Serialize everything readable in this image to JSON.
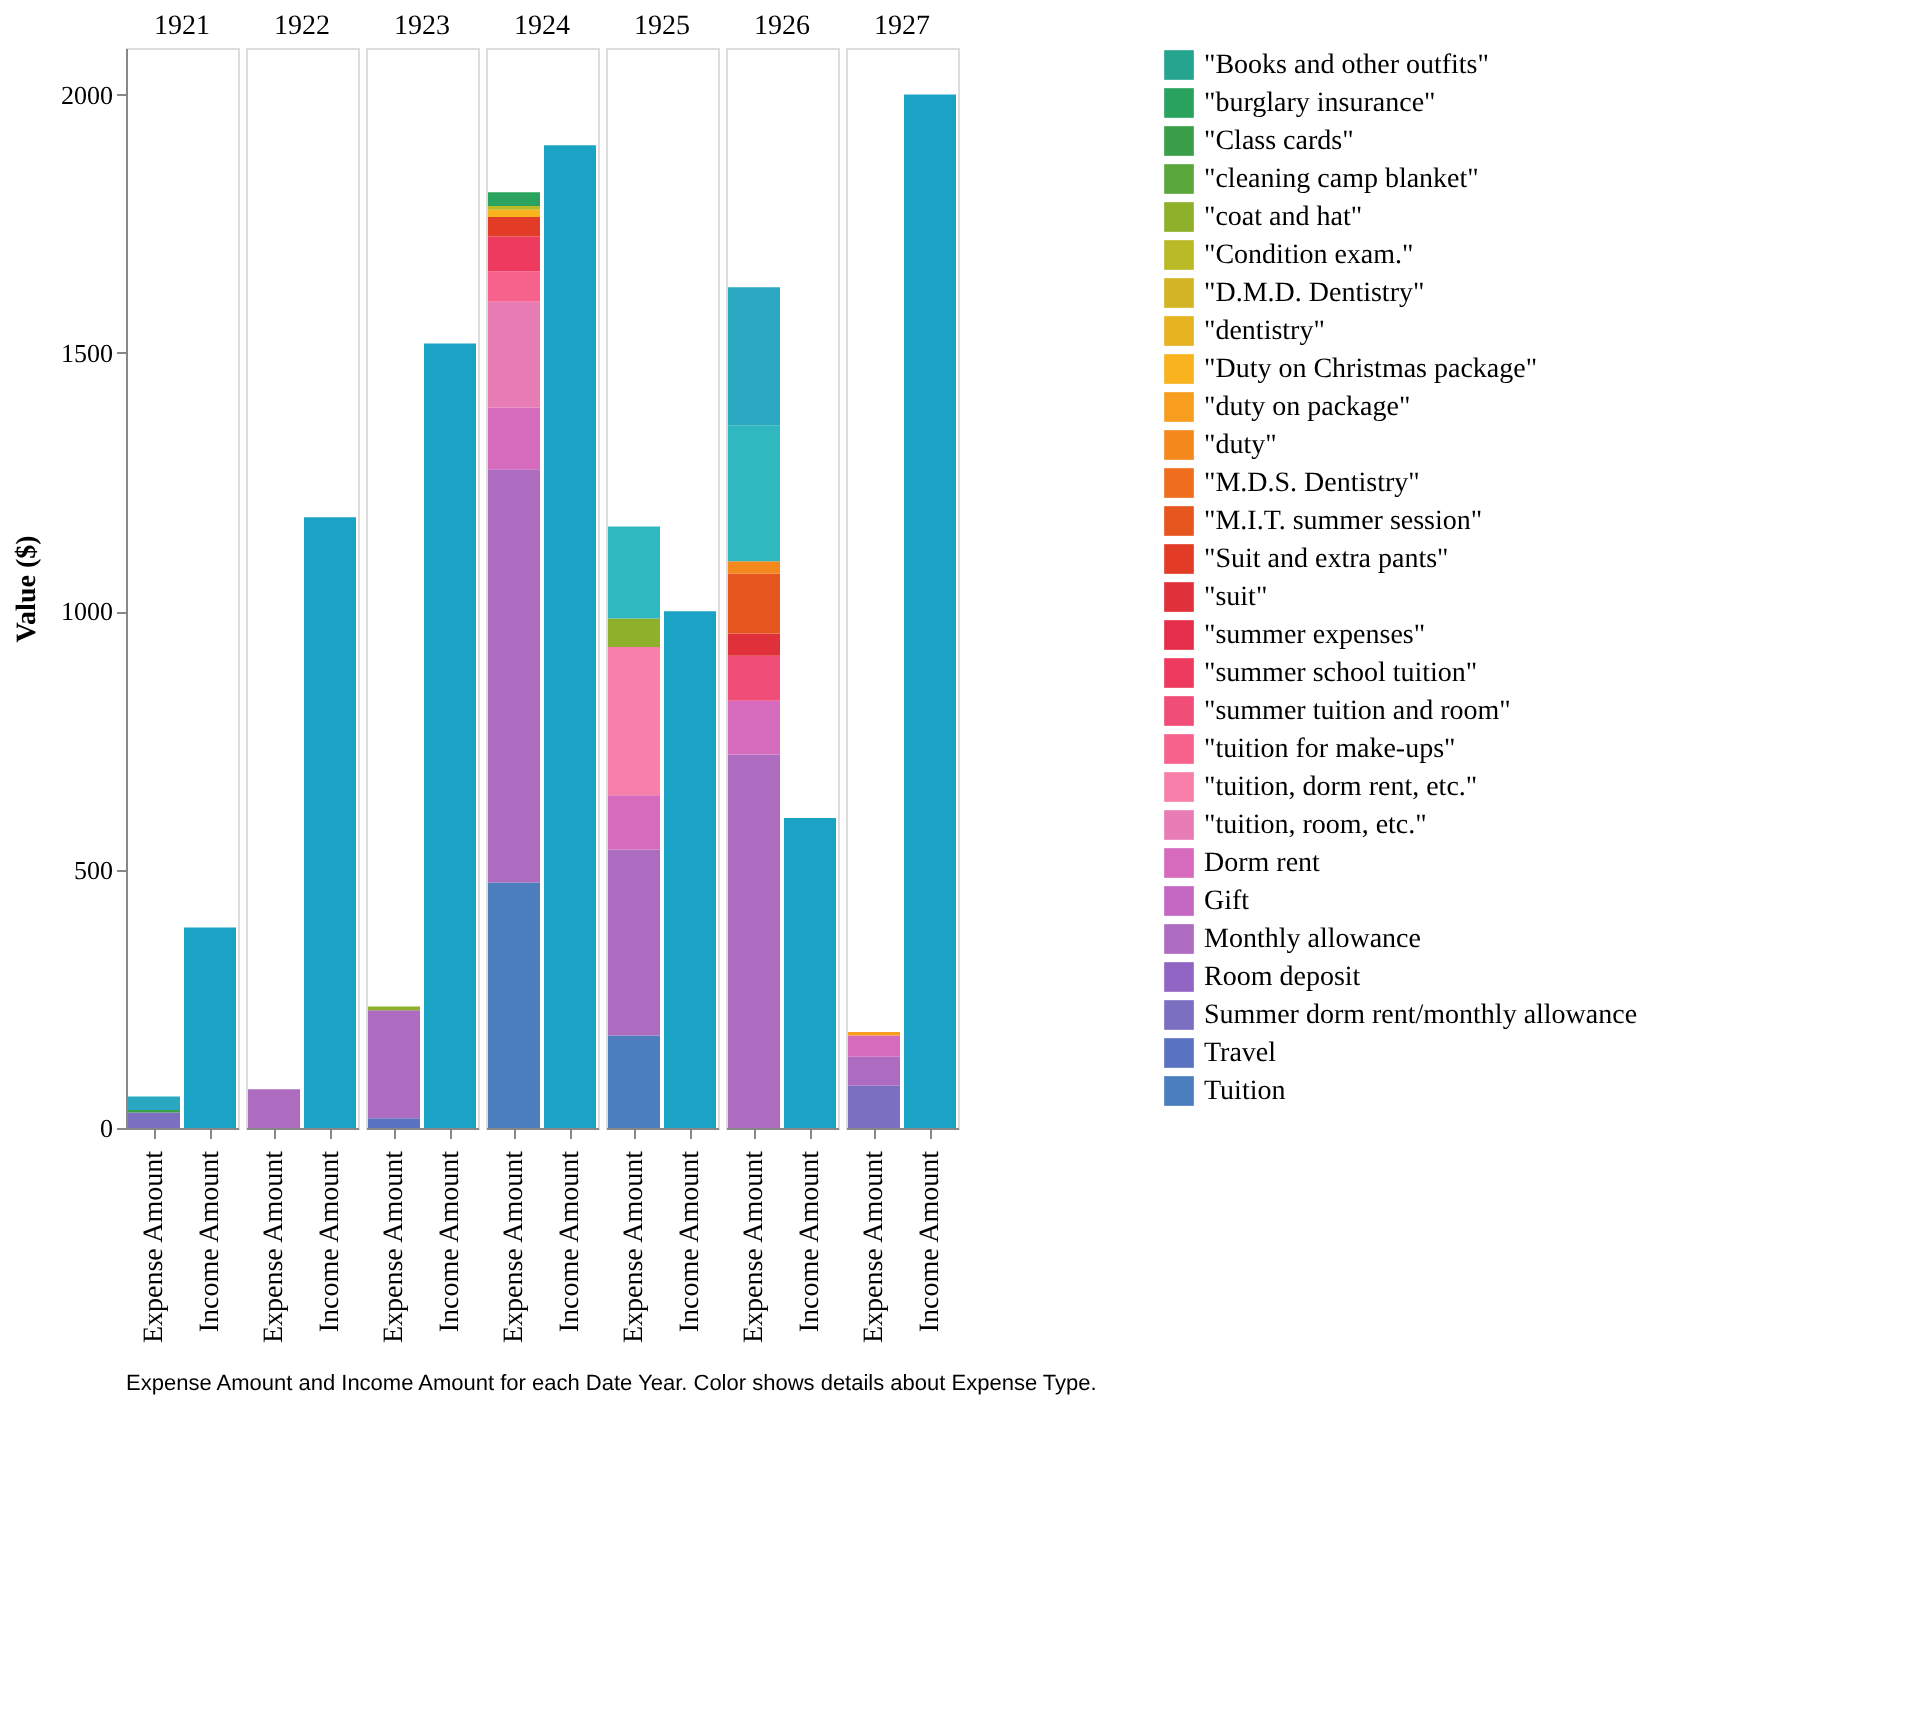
{
  "chart_data": [
    {
      "type": "bar",
      "stacked": true,
      "title": "1921",
      "ylabel": "Value ($)",
      "legend": "right",
      "categories": [
        "Expense Amount",
        "Income Amount"
      ],
      "ylim": [
        0,
        2090
      ],
      "yticks": [
        0,
        500,
        1000,
        1500,
        2000
      ],
      "annotations": [
        "Expense Amount and Income Amount for each Date Year.  Color shows details about Expense Type."
      ],
      "series": [
        {
          "name": "Tuition",
          "color": "#4b7ebd",
          "values": [
            null,
            null
          ]
        },
        {
          "name": "Travel",
          "color": "#5a73c0",
          "values": [
            null,
            null
          ]
        },
        {
          "name": "Summer dorm rent/monthly allowance",
          "color": "#7b6fc2",
          "values": [
            30,
            null
          ]
        },
        {
          "name": "Room deposit",
          "color": "#9165c4",
          "values": [
            null,
            null
          ]
        },
        {
          "name": "Monthly allowance",
          "color": "#ae6cc0",
          "values": [
            null,
            null
          ]
        },
        {
          "name": "Gift",
          "color": "#c468c4",
          "values": [
            null,
            null
          ]
        },
        {
          "name": "Dorm rent",
          "color": "#d66bbd",
          "values": [
            null,
            null
          ]
        },
        {
          "name": "\"tuition, room, etc.\"",
          "color": "#e87cb4",
          "values": [
            null,
            null
          ]
        },
        {
          "name": "\"tuition, dorm rent, etc.\"",
          "color": "#f77faa",
          "values": [
            null,
            null
          ]
        },
        {
          "name": "\"tuition for make-ups\"",
          "color": "#f7628c",
          "values": [
            null,
            null
          ]
        },
        {
          "name": "\"summer tuition and room\"",
          "color": "#f04e78",
          "values": [
            null,
            null
          ]
        },
        {
          "name": "\"summer school tuition\"",
          "color": "#ee3a5f",
          "values": [
            null,
            null
          ]
        },
        {
          "name": "\"summer expenses\"",
          "color": "#e52f4a",
          "values": [
            null,
            null
          ]
        },
        {
          "name": "\"suit\"",
          "color": "#e0303a",
          "values": [
            null,
            null
          ]
        },
        {
          "name": "\"Suit and extra pants\"",
          "color": "#e23b26",
          "values": [
            null,
            null
          ]
        },
        {
          "name": "\"M.I.T. summer session\"",
          "color": "#e8561f",
          "values": [
            null,
            null
          ]
        },
        {
          "name": "\"M.D.S. Dentistry\"",
          "color": "#ef6e1e",
          "values": [
            null,
            null
          ]
        },
        {
          "name": "\"duty\"",
          "color": "#f5881d",
          "values": [
            null,
            null
          ]
        },
        {
          "name": "\"duty on package\"",
          "color": "#f79e1f",
          "values": [
            null,
            null
          ]
        },
        {
          "name": "\"Duty on Christmas package\"",
          "color": "#f8b31f",
          "values": [
            null,
            null
          ]
        },
        {
          "name": "\"dentistry\"",
          "color": "#e6b421",
          "values": [
            null,
            null
          ]
        },
        {
          "name": "\"D.M.D. Dentistry\"",
          "color": "#d3b425",
          "values": [
            null,
            null
          ]
        },
        {
          "name": "\"Condition exam.\"",
          "color": "#b9ba26",
          "values": [
            null,
            null
          ]
        },
        {
          "name": "\"coat and hat\"",
          "color": "#8fb02a",
          "values": [
            null,
            null
          ]
        },
        {
          "name": "\"cleaning camp blanket\"",
          "color": "#5aa83c",
          "values": [
            null,
            null
          ]
        },
        {
          "name": "\"Class cards\"",
          "color": "#3b9e48",
          "values": [
            5,
            null
          ]
        },
        {
          "name": "\"burglary insurance\"",
          "color": "#2aa35e",
          "values": [
            null,
            null
          ]
        },
        {
          "name": "\"Books and other outfits\"",
          "color": "#25a58f",
          "values": [
            null,
            null
          ]
        },
        {
          "color": "#2aa8c1",
          "values": [
            26,
            null
          ]
        },
        {
          "color": "#1ba3c6",
          "values": [
            null,
            388
          ]
        }
      ]
    },
    {
      "type": "bar",
      "stacked": true,
      "title": "1922",
      "tick_labels": "x",
      "categories": [
        "Expense Amount",
        "Income Amount"
      ],
      "ylim": [
        0,
        2090
      ],
      "series": [
        {
          "color": "#ae6cc0",
          "values": [
            75,
            null
          ]
        },
        {
          "color": "#1ba3c6",
          "values": [
            null,
            1182
          ]
        }
      ]
    },
    {
      "type": "bar",
      "stacked": true,
      "title": "1923",
      "tick_labels": "x",
      "categories": [
        "Expense Amount",
        "Income Amount"
      ],
      "ylim": [
        0,
        2090
      ],
      "series": [
        {
          "color": "#5a73c0",
          "values": [
            19,
            null
          ]
        },
        {
          "color": "#ae6cc0",
          "values": [
            209,
            null
          ]
        },
        {
          "color": "#8fb02a",
          "values": [
            7,
            null
          ]
        },
        {
          "color": "#1ba3c6",
          "values": [
            null,
            1518
          ]
        }
      ]
    },
    {
      "type": "bar",
      "stacked": true,
      "title": "1924",
      "tick_labels": "x",
      "categories": [
        "Expense Amount",
        "Income Amount"
      ],
      "ylim": [
        0,
        2090
      ],
      "series": [
        {
          "color": "#4b7ebd",
          "values": [
            475,
            null
          ]
        },
        {
          "color": "#ae6cc0",
          "values": [
            800,
            null
          ]
        },
        {
          "color": "#d66bbd",
          "values": [
            119,
            null
          ]
        },
        {
          "color": "#e87cb4",
          "values": [
            205,
            null
          ]
        },
        {
          "color": "#f7628c",
          "values": [
            59,
            null
          ]
        },
        {
          "color": "#ee3a5f",
          "values": [
            67,
            null
          ]
        },
        {
          "color": "#e23b26",
          "values": [
            38,
            null
          ]
        },
        {
          "color": "#f8b31f",
          "values": [
            14,
            null
          ]
        },
        {
          "color": "#b9ba26",
          "values": [
            7,
            null
          ]
        },
        {
          "color": "#2aa35e",
          "values": [
            27,
            null
          ]
        },
        {
          "color": "#1ba3c6",
          "values": [
            null,
            1902
          ]
        }
      ]
    },
    {
      "type": "bar",
      "stacked": true,
      "title": "1925",
      "tick_labels": "x",
      "categories": [
        "Expense Amount",
        "Income Amount"
      ],
      "ylim": [
        0,
        2090
      ],
      "series": [
        {
          "color": "#4b7ebd",
          "values": [
            179,
            null
          ]
        },
        {
          "color": "#ae6cc0",
          "values": [
            360,
            null
          ]
        },
        {
          "color": "#d66bbd",
          "values": [
            105,
            null
          ]
        },
        {
          "color": "#f77faa",
          "values": [
            287,
            null
          ]
        },
        {
          "color": "#8fb02a",
          "values": [
            55,
            null
          ]
        },
        {
          "color": "#30b8c0",
          "values": [
            178,
            null
          ]
        },
        {
          "color": "#1ba3c6",
          "values": [
            null,
            1000
          ]
        }
      ]
    },
    {
      "type": "bar",
      "stacked": true,
      "title": "1926",
      "tick_labels": "x",
      "categories": [
        "Expense Amount",
        "Income Amount"
      ],
      "ylim": [
        0,
        2090
      ],
      "series": [
        {
          "color": "#ae6cc0",
          "values": [
            723,
            null
          ]
        },
        {
          "color": "#d66bbd",
          "values": [
            104,
            null
          ]
        },
        {
          "color": "#f04e78",
          "values": [
            87,
            null
          ]
        },
        {
          "color": "#e0303a",
          "values": [
            43,
            null
          ]
        },
        {
          "color": "#e8561f",
          "values": [
            116,
            null
          ]
        },
        {
          "color": "#f5881d",
          "values": [
            24,
            null
          ]
        },
        {
          "color": "#30b8c0",
          "values": [
            263,
            null
          ]
        },
        {
          "color": "#2aa8c1",
          "values": [
            267,
            null
          ]
        },
        {
          "color": "#1ba3c6",
          "values": [
            null,
            600
          ]
        }
      ]
    },
    {
      "type": "bar",
      "stacked": true,
      "title": "1927",
      "tick_labels": "x",
      "categories": [
        "Expense Amount",
        "Income Amount"
      ],
      "ylim": [
        0,
        2090
      ],
      "series": [
        {
          "color": "#7b6fc2",
          "values": [
            82,
            null
          ]
        },
        {
          "color": "#ae6cc0",
          "values": [
            56,
            null
          ]
        },
        {
          "color": "#d66bbd",
          "values": [
            41,
            null
          ]
        },
        {
          "color": "#f79e1f",
          "values": [
            7,
            null
          ]
        },
        {
          "color": "#1ba3c6",
          "values": [
            null,
            2000
          ]
        }
      ]
    }
  ]
}
